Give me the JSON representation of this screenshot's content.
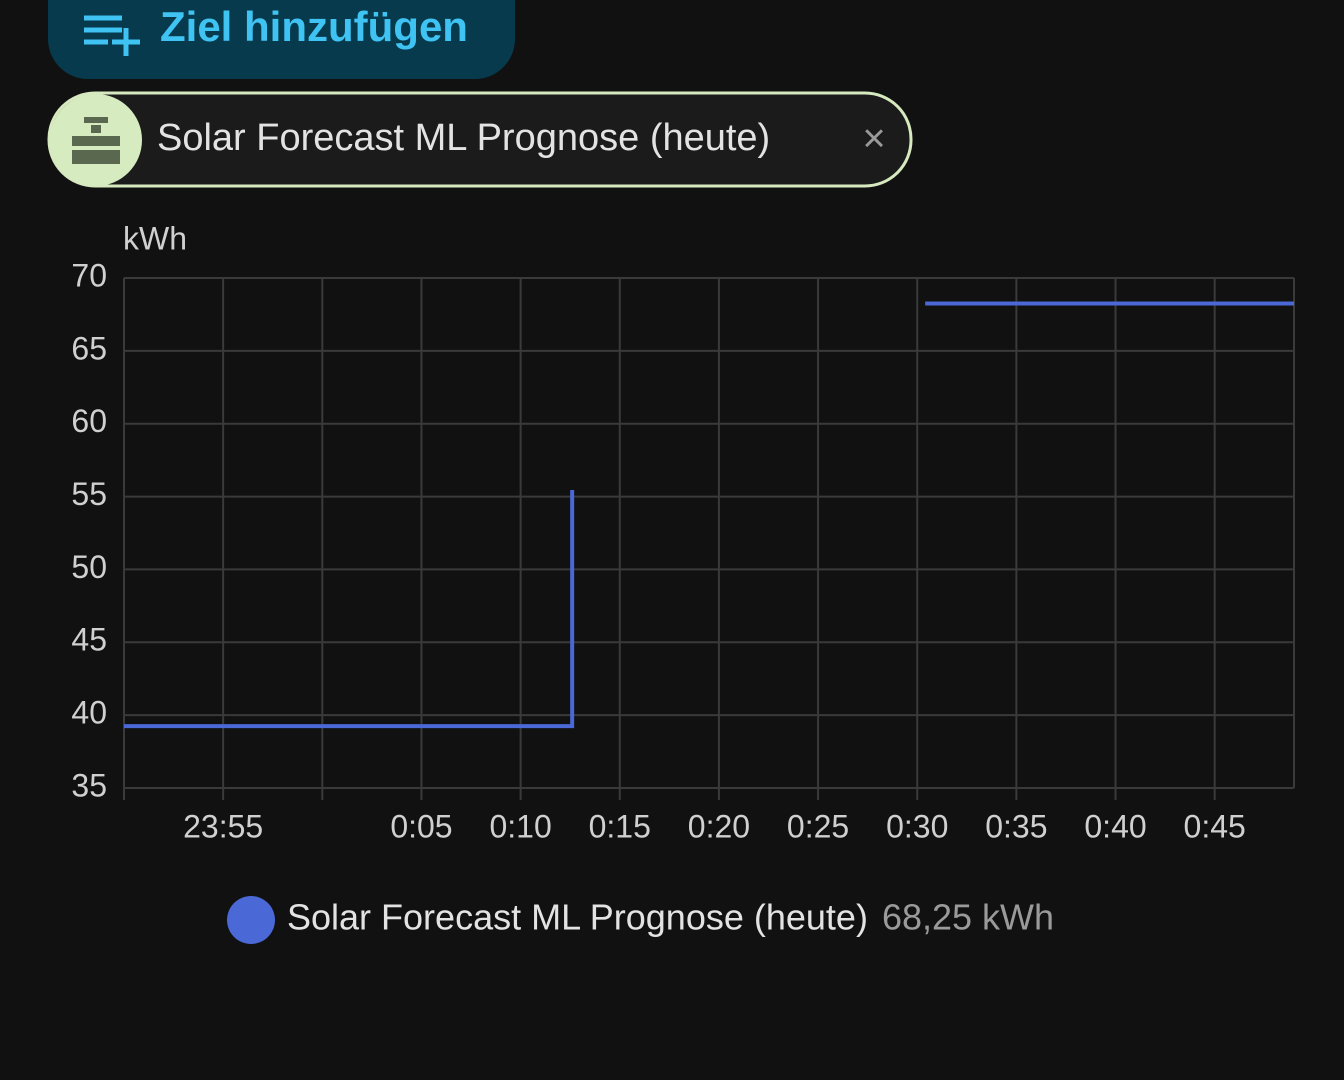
{
  "button": {
    "label": "Ziel hinzufügen"
  },
  "chip": {
    "label": "Solar Forecast ML Prognose (heute)"
  },
  "chart_data": {
    "type": "line",
    "y_label": "kWh",
    "xlim": [
      -10,
      49
    ],
    "xticks": [
      {
        "value": -5,
        "label": "23:55"
      },
      {
        "value": 0,
        "label": null
      },
      {
        "value": 5,
        "label": "0:05"
      },
      {
        "value": 10,
        "label": "0:10"
      },
      {
        "value": 15,
        "label": "0:15"
      },
      {
        "value": 20,
        "label": "0:20"
      },
      {
        "value": 25,
        "label": "0:25"
      },
      {
        "value": 30,
        "label": "0:30"
      },
      {
        "value": 35,
        "label": "0:35"
      },
      {
        "value": 40,
        "label": "0:40"
      },
      {
        "value": 45,
        "label": "0:45"
      }
    ],
    "ylim": [
      35,
      70
    ],
    "yticks": [
      35,
      40,
      45,
      50,
      55,
      60,
      65,
      70
    ],
    "grid": true,
    "series": [
      {
        "name": "Solar Forecast ML Prognose (heute)",
        "color": "#4a68d6",
        "x": [
          -10,
          12.6,
          12.6,
          null,
          30.4,
          49
        ],
        "values": [
          39.25,
          39.25,
          55.45,
          null,
          68.25,
          68.25
        ]
      }
    ],
    "legend": {
      "state": "68,25 kWh"
    }
  }
}
